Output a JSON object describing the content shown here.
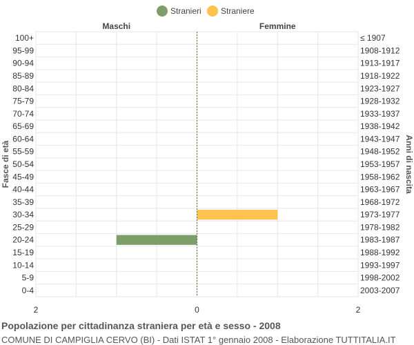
{
  "chart_data": {
    "type": "bar",
    "orientation": "horizontal",
    "title": "Popolazione per cittadinanza straniera per età e sesso - 2008",
    "subtitle": "COMUNE DI CAMPIGLIA CERVO (BI) - Dati ISTAT 1° gennaio 2008 - Elaborazione TUTTITALIA.IT",
    "ylabel_left": "Fasce di età",
    "ylabel_right": "Anni di nascita",
    "left_header": "Maschi",
    "right_header": "Femmine",
    "legend_position": "top-center",
    "xlim": [
      -2,
      2
    ],
    "x_ticks": [
      {
        "value": -2,
        "label": "2"
      },
      {
        "value": 0,
        "label": "0"
      },
      {
        "value": 2,
        "label": "2"
      }
    ],
    "categories": [
      "100+",
      "95-99",
      "90-94",
      "85-89",
      "80-84",
      "75-79",
      "70-74",
      "65-69",
      "60-64",
      "55-59",
      "50-54",
      "45-49",
      "40-44",
      "35-39",
      "30-34",
      "25-29",
      "20-24",
      "15-19",
      "10-14",
      "5-9",
      "0-4"
    ],
    "birth_years": [
      "≤ 1907",
      "1908-1912",
      "1913-1917",
      "1918-1922",
      "1923-1927",
      "1928-1932",
      "1933-1937",
      "1938-1942",
      "1943-1947",
      "1948-1952",
      "1953-1957",
      "1958-1962",
      "1963-1967",
      "1968-1972",
      "1973-1977",
      "1978-1982",
      "1983-1987",
      "1988-1992",
      "1993-1997",
      "1998-2002",
      "2003-2007"
    ],
    "series": [
      {
        "name": "Stranieri",
        "color": "#7c9e6a",
        "side": "left",
        "values": [
          0,
          0,
          0,
          0,
          0,
          0,
          0,
          0,
          0,
          0,
          0,
          0,
          0,
          0,
          0,
          0,
          1,
          0,
          0,
          0,
          0
        ]
      },
      {
        "name": "Straniere",
        "color": "#ffc24f",
        "side": "right",
        "values": [
          0,
          0,
          0,
          0,
          0,
          0,
          0,
          0,
          0,
          0,
          0,
          0,
          0,
          0,
          1,
          0,
          0,
          0,
          0,
          0,
          0
        ]
      }
    ],
    "grid": true
  }
}
